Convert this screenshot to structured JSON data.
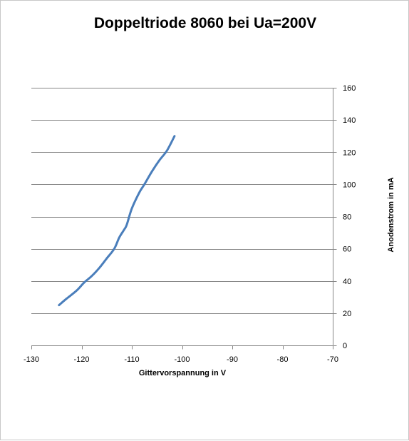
{
  "chart_data": {
    "type": "line",
    "title": "Doppeltriode 8060 bei Ua=200V",
    "xlabel": "Gittervorspannung  in V",
    "ylabel": "Anodenstrom in mA",
    "xlim": [
      -130,
      -70
    ],
    "ylim": [
      0,
      160
    ],
    "x_ticks": [
      -130,
      -120,
      -110,
      -100,
      -90,
      -80,
      -70
    ],
    "y_ticks": [
      0,
      20,
      40,
      60,
      80,
      100,
      120,
      140,
      160
    ],
    "x_tick_labels": [
      "-130",
      "-120",
      "-110",
      "-100",
      "-90",
      "-80",
      "-70"
    ],
    "y_tick_labels": [
      "0",
      "20",
      "40",
      "60",
      "80",
      "100",
      "120",
      "140",
      "160"
    ],
    "y_axis_side": "right",
    "grid": "horizontal",
    "legend": "none",
    "series": [
      {
        "color": "#4a7ebb",
        "x": [
          -124.5,
          -123,
          -121,
          -119.5,
          -118,
          -116.5,
          -115,
          -113.5,
          -112.5,
          -111.5,
          -111,
          -110,
          -108.5,
          -107.5,
          -106,
          -104.5,
          -103,
          -101.5
        ],
        "y": [
          25,
          29,
          34,
          39,
          43,
          48,
          54,
          60,
          67,
          72,
          75,
          85,
          95,
          100,
          108,
          115,
          121,
          130
        ]
      }
    ]
  }
}
